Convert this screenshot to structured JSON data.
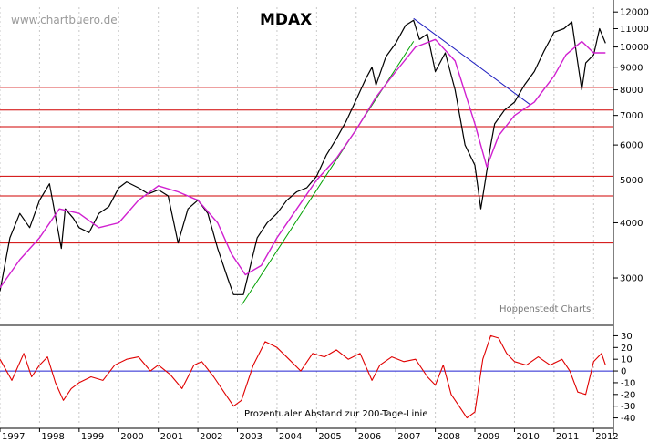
{
  "title": "MDAX",
  "watermark": "www.chartbuero.de",
  "credit": "Hoppenstedt Charts",
  "oscillator_label": "Prozentualer Abstand zur 200-Tage-Linie",
  "chart_data": [
    {
      "type": "line",
      "title": "MDAX",
      "y_scale": "log",
      "ylim": [
        2400,
        12300
      ],
      "xlim": [
        1997.0,
        2012.5
      ],
      "y_ticks": [
        3000,
        4000,
        5000,
        6000,
        7000,
        8000,
        9000,
        10000,
        11000,
        12000
      ],
      "x_tick_labels": [
        "1997",
        "1998",
        "1999",
        "2000",
        "2001",
        "2002",
        "2003",
        "2004",
        "2005",
        "2006",
        "2007",
        "2008",
        "2009",
        "2010",
        "2011",
        "2012"
      ],
      "grid": "vertical dotted at year boundaries",
      "colors": {
        "price": "#000000",
        "ma200": "#d020d0",
        "support": "#d00000",
        "uptrend": "#00a000",
        "downtrend": "#2020c0"
      },
      "series": [
        {
          "x": [
            1997.0,
            1997.25,
            1997.5,
            1997.75,
            1998.0,
            1998.25,
            1998.55,
            1998.65,
            1998.85,
            1999.0,
            1999.25,
            1999.5,
            1999.75,
            2000.0,
            2000.2,
            2000.5,
            2000.75,
            2001.0,
            2001.25,
            2001.5,
            2001.75,
            2002.0,
            2002.25,
            2002.5,
            2002.75,
            2002.9,
            2003.15,
            2003.5,
            2003.75,
            2004.0,
            2004.25,
            2004.5,
            2004.75,
            2005.0,
            2005.25,
            2005.5,
            2005.75,
            2006.0,
            2006.25,
            2006.4,
            2006.5,
            2006.75,
            2007.0,
            2007.25,
            2007.45,
            2007.6,
            2007.8,
            2008.0,
            2008.25,
            2008.5,
            2008.75,
            2009.0,
            2009.15,
            2009.25,
            2009.4,
            2009.5,
            2009.75,
            2010.0,
            2010.25,
            2010.5,
            2010.75,
            2011.0,
            2011.25,
            2011.45,
            2011.6,
            2011.7,
            2011.8,
            2012.0,
            2012.15,
            2012.3
          ],
          "values": [
            2800,
            3700,
            4200,
            3900,
            4500,
            4900,
            3500,
            4300,
            4100,
            3900,
            3800,
            4200,
            4350,
            4800,
            4950,
            4800,
            4650,
            4750,
            4600,
            3600,
            4300,
            4500,
            4200,
            3500,
            3000,
            2750,
            2750,
            3700,
            4000,
            4200,
            4500,
            4700,
            4800,
            5100,
            5700,
            6200,
            6800,
            7600,
            8500,
            9000,
            8200,
            9500,
            10200,
            11200,
            11500,
            10400,
            10700,
            8800,
            9700,
            8000,
            6000,
            5400,
            4300,
            4900,
            6000,
            6700,
            7200,
            7500,
            8200,
            8800,
            9800,
            10800,
            11000,
            11400,
            9200,
            8000,
            9200,
            9600,
            11000,
            10200
          ]
        },
        {
          "x": [
            1997.0,
            1997.5,
            1998.0,
            1998.5,
            1999.0,
            1999.5,
            2000.0,
            2000.5,
            2001.0,
            2001.5,
            2002.0,
            2002.5,
            2002.85,
            2003.2,
            2003.6,
            2004.0,
            2004.5,
            2005.0,
            2005.5,
            2006.0,
            2006.5,
            2007.0,
            2007.5,
            2008.0,
            2008.5,
            2009.0,
            2009.3,
            2009.6,
            2010.0,
            2010.5,
            2011.0,
            2011.3,
            2011.7,
            2012.0,
            2012.3
          ],
          "values": [
            2850,
            3300,
            3700,
            4300,
            4200,
            3900,
            4000,
            4500,
            4850,
            4700,
            4500,
            4000,
            3400,
            3050,
            3200,
            3700,
            4300,
            5000,
            5600,
            6500,
            7700,
            8800,
            10000,
            10400,
            9300,
            6700,
            5350,
            6300,
            7000,
            7500,
            8600,
            9600,
            10300,
            9700,
            9700
          ]
        }
      ],
      "support_levels": [
        3600,
        4600,
        5100,
        6600,
        7200,
        8100
      ],
      "trendlines": [
        {
          "from": [
            2003.1,
            2600
          ],
          "to": [
            2007.45,
            10300
          ]
        },
        {
          "from": [
            2007.45,
            11600
          ],
          "to": [
            2010.4,
            7400
          ]
        }
      ]
    },
    {
      "type": "line",
      "title": "Prozentualer Abstand zur 200-Tage-Linie",
      "ylim": [
        -45,
        35
      ],
      "y_ticks": [
        30,
        20,
        10,
        0,
        -10,
        -20,
        -30,
        -40
      ],
      "baseline": 0,
      "series": [
        {
          "x": [
            1997.0,
            1997.3,
            1997.6,
            1997.8,
            1998.0,
            1998.2,
            1998.4,
            1998.6,
            1998.8,
            1999.0,
            1999.3,
            1999.6,
            1999.9,
            2000.2,
            2000.5,
            2000.8,
            2001.0,
            2001.3,
            2001.6,
            2001.9,
            2002.1,
            2002.4,
            2002.7,
            2002.9,
            2003.1,
            2003.4,
            2003.7,
            2004.0,
            2004.3,
            2004.6,
            2004.9,
            2005.2,
            2005.5,
            2005.8,
            2006.1,
            2006.4,
            2006.6,
            2006.9,
            2007.2,
            2007.5,
            2007.8,
            2008.0,
            2008.2,
            2008.4,
            2008.6,
            2008.8,
            2009.0,
            2009.2,
            2009.4,
            2009.6,
            2009.8,
            2010.0,
            2010.3,
            2010.6,
            2010.9,
            2011.2,
            2011.4,
            2011.6,
            2011.8,
            2012.0,
            2012.2,
            2012.3
          ],
          "values": [
            10,
            -8,
            15,
            -5,
            5,
            12,
            -10,
            -25,
            -15,
            -10,
            -5,
            -8,
            5,
            10,
            12,
            0,
            5,
            -3,
            -15,
            5,
            8,
            -5,
            -20,
            -30,
            -25,
            5,
            25,
            20,
            10,
            0,
            15,
            12,
            18,
            10,
            15,
            -8,
            5,
            12,
            8,
            10,
            -5,
            -12,
            5,
            -20,
            -30,
            -40,
            -35,
            10,
            30,
            28,
            15,
            8,
            5,
            12,
            5,
            10,
            0,
            -18,
            -20,
            8,
            15,
            5
          ]
        }
      ]
    }
  ]
}
